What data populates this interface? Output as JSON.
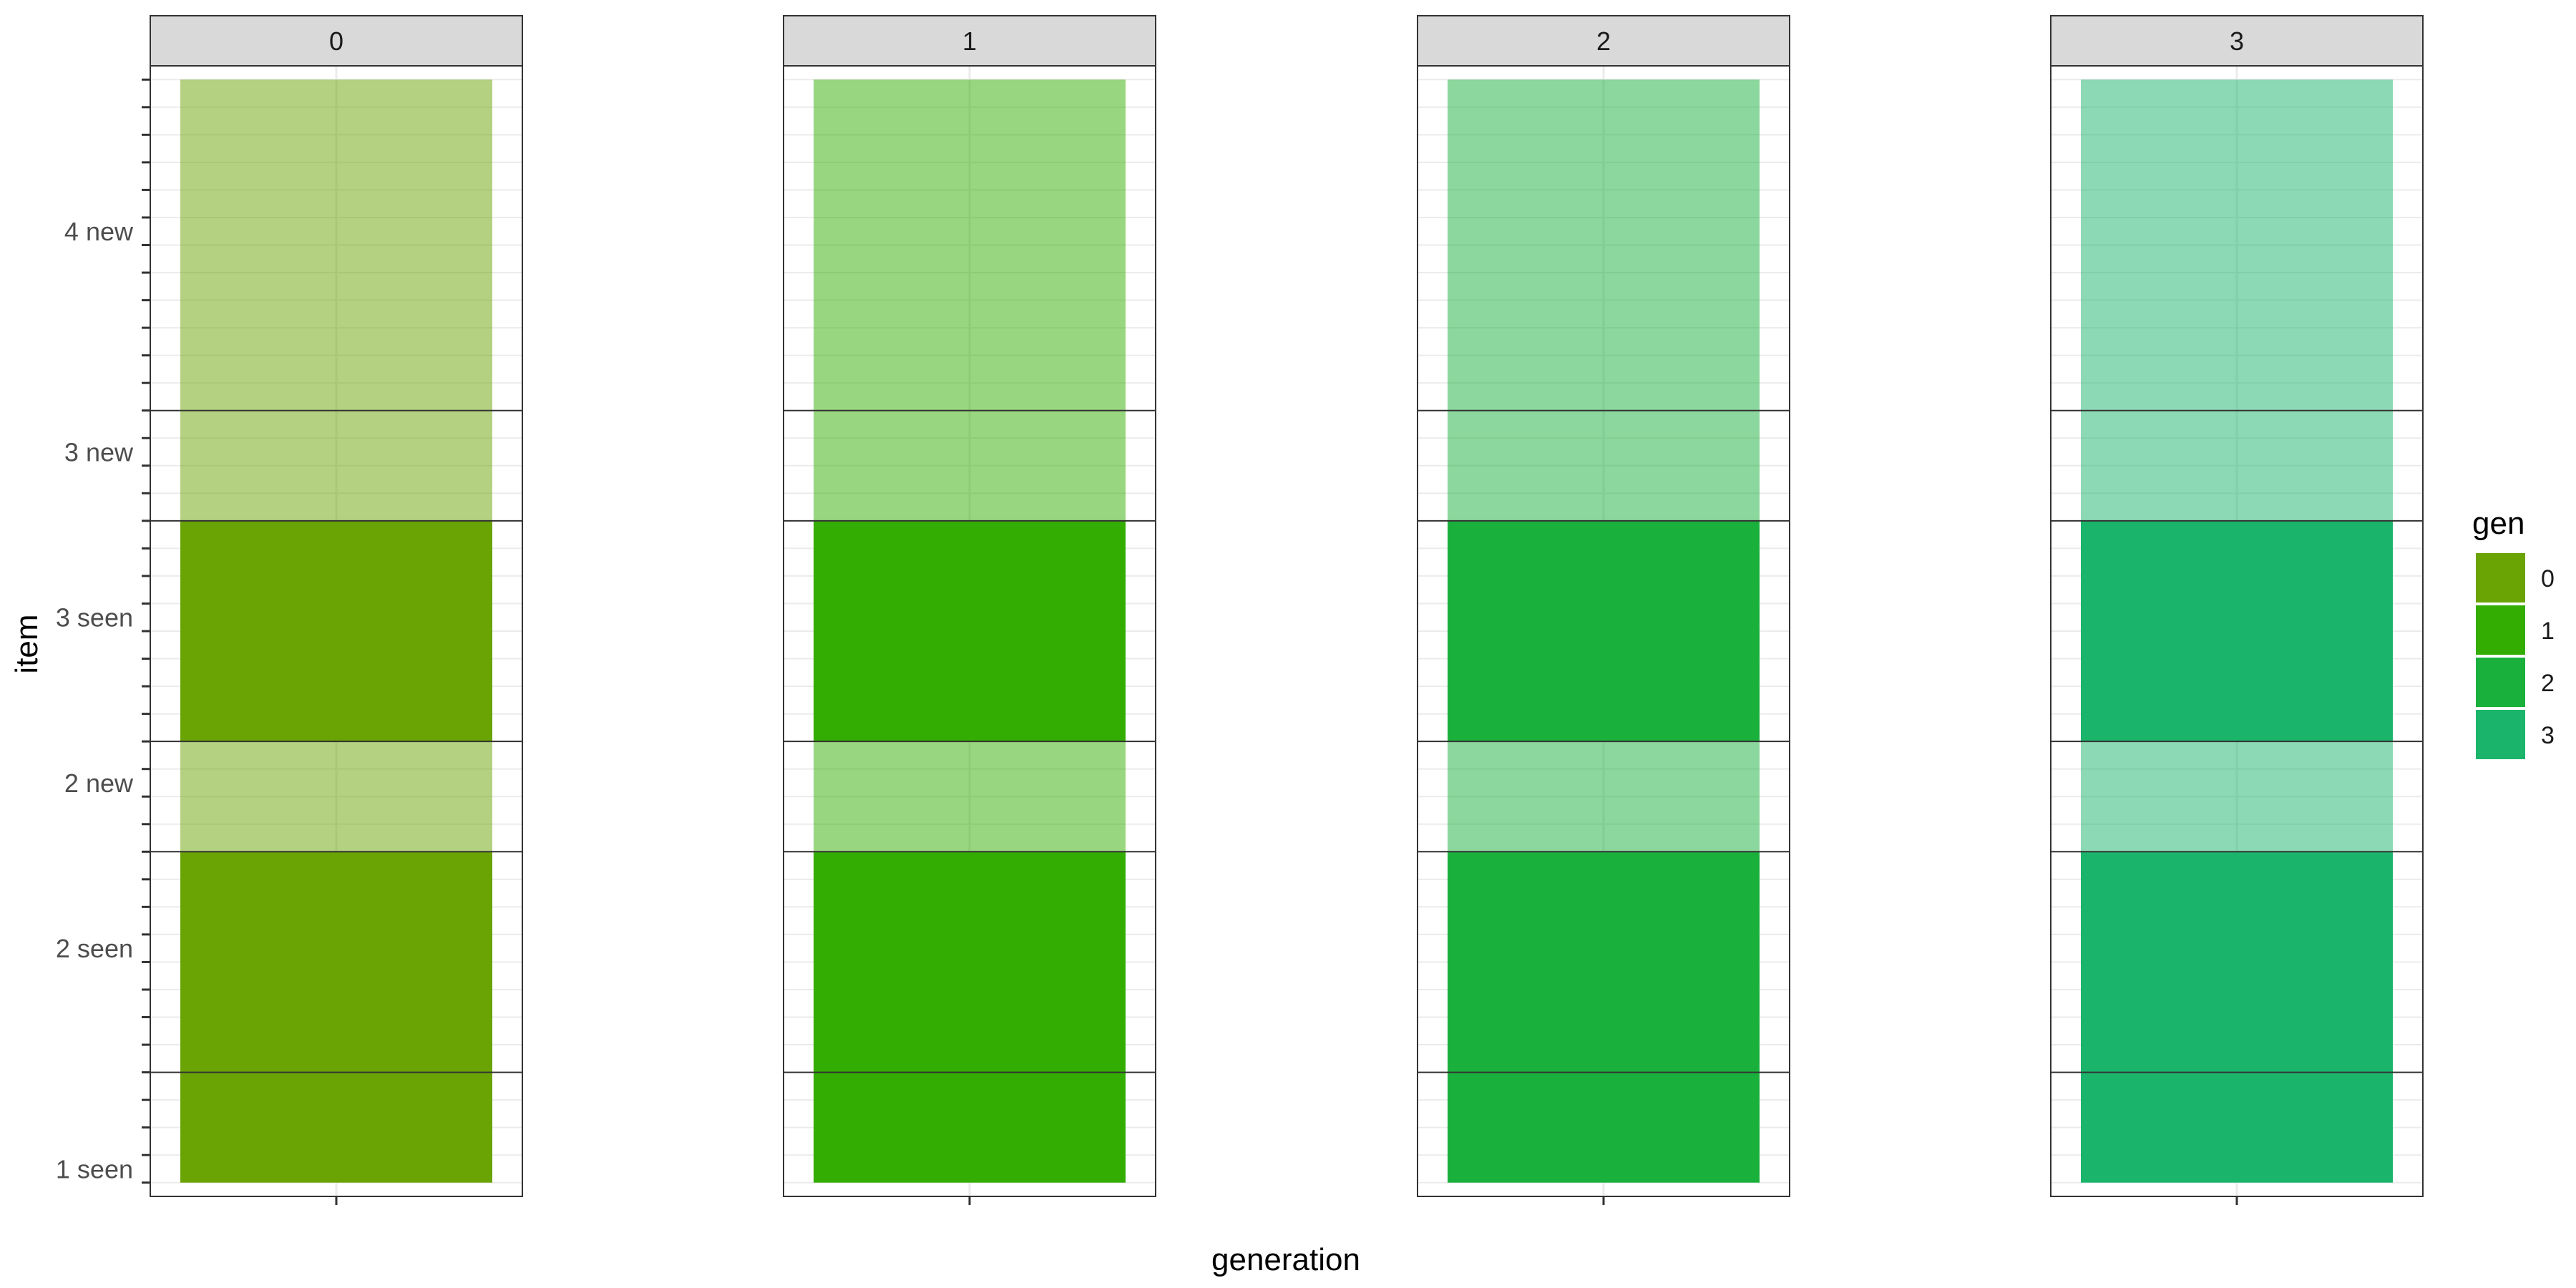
{
  "chart_data": {
    "type": "bar",
    "facet_labels": [
      "0",
      "1",
      "2",
      "3"
    ],
    "xlabel": "generation",
    "ylabel": "item",
    "y_tick_labels": [
      "1 seen",
      "2 seen",
      "2 new",
      "3 seen",
      "3 new",
      "4 new"
    ],
    "ylim": [
      0,
      40
    ],
    "segments": [
      {
        "item": "1 seen",
        "y0": 0,
        "y1": 4,
        "status": "seen"
      },
      {
        "item": "2 seen",
        "y0": 4,
        "y1": 12,
        "status": "seen"
      },
      {
        "item": "2 new",
        "y0": 12,
        "y1": 16,
        "status": "new"
      },
      {
        "item": "3 seen",
        "y0": 16,
        "y1": 24,
        "status": "seen"
      },
      {
        "item": "3 new",
        "y0": 24,
        "y1": 28,
        "status": "new"
      },
      {
        "item": "4 new",
        "y0": 28,
        "y1": 40,
        "status": "new"
      }
    ],
    "series": [
      {
        "name": "0",
        "x": "0",
        "color": "#6aa304"
      },
      {
        "name": "1",
        "x": "1",
        "color": "#33ad02"
      },
      {
        "name": "2",
        "x": "2",
        "color": "#1ab03c"
      },
      {
        "name": "3",
        "x": "3",
        "color": "#1ab56b"
      }
    ],
    "legend": {
      "title": "gen",
      "entries": [
        "0",
        "1",
        "2",
        "3"
      ],
      "position": "right"
    },
    "new_alpha": 0.5,
    "grid": true
  }
}
